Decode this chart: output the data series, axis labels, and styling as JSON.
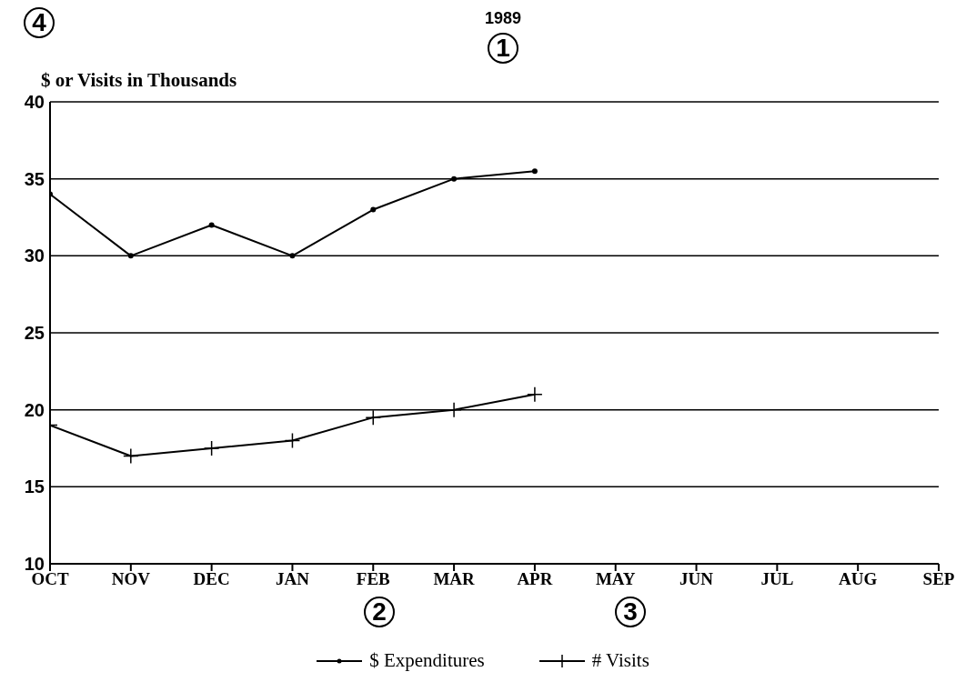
{
  "chart_data": {
    "type": "line",
    "title": "1989",
    "ylabel": "$ or Visits in Thousands",
    "categories": [
      "OCT",
      "NOV",
      "DEC",
      "JAN",
      "FEB",
      "MAR",
      "APR",
      "MAY",
      "JUN",
      "JUL",
      "AUG",
      "SEP"
    ],
    "series": [
      {
        "name": "$ Expenditures",
        "color": "#000000",
        "marker": "circle",
        "values": [
          34,
          30,
          32,
          30,
          33,
          35,
          35.5,
          null,
          null,
          null,
          null,
          null
        ]
      },
      {
        "name": "# Visits",
        "color": "#000000",
        "marker": "cross",
        "values": [
          19,
          17,
          17.5,
          18,
          19.5,
          20,
          21,
          null,
          null,
          null,
          null,
          null
        ]
      }
    ],
    "ylim": [
      10,
      40
    ],
    "yticks": [
      10,
      15,
      20,
      25,
      30,
      35,
      40
    ],
    "grid": "y",
    "legend": "bottom",
    "line_style": "solid",
    "annotations": [
      "1",
      "2",
      "3",
      "4"
    ]
  }
}
